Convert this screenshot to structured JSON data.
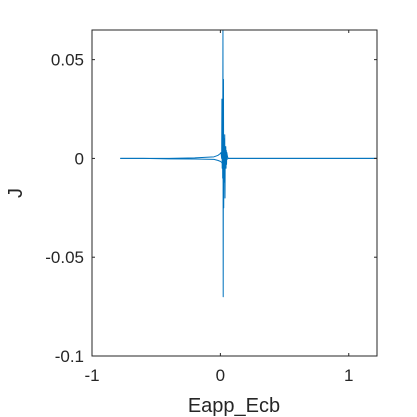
{
  "chart_data": {
    "type": "line",
    "title": "",
    "xlabel": "Eapp_Ecb",
    "ylabel": "J",
    "xlim": [
      -1,
      1.22
    ],
    "ylim": [
      -0.1,
      0.065
    ],
    "xticks": [
      -1,
      0,
      1
    ],
    "xtick_labels": [
      "-1",
      "0",
      "1"
    ],
    "yticks": [
      0.05,
      0,
      -0.05,
      -0.1
    ],
    "ytick_labels": [
      "0.05",
      "0",
      "-0.05",
      "-0.1"
    ],
    "grid": false,
    "legend": "none",
    "series": [
      {
        "color": "#0072bd",
        "x": [
          -0.78,
          -0.6,
          -0.4,
          -0.2,
          -0.05,
          -0.02,
          -0.01,
          0.0,
          0.005,
          0.01,
          0.012,
          0.014,
          0.016,
          0.018,
          0.02,
          0.022,
          0.024,
          0.026,
          0.028,
          0.03,
          0.032,
          0.034,
          0.036,
          0.038,
          0.04,
          0.042,
          0.044,
          0.046,
          0.048,
          0.05,
          0.055,
          0.06,
          0.07,
          0.08,
          0.1,
          0.2,
          0.4,
          0.6,
          0.8,
          1.0,
          1.22
        ],
        "y": [
          0.0,
          0.0,
          0.0,
          0.0003,
          0.0008,
          0.0015,
          0.002,
          0.0025,
          0.003,
          0.0,
          0.03,
          -0.005,
          0.025,
          -0.01,
          0.065,
          -0.07,
          0.04,
          -0.025,
          0.01,
          -0.012,
          0.003,
          0.012,
          -0.02,
          0.005,
          0.0,
          0.006,
          -0.005,
          0.004,
          -0.003,
          0.003,
          0.001,
          0.0,
          0.0,
          0.0,
          0.0,
          0.0,
          0.0,
          0.0,
          0.0,
          0.0,
          0.0
        ]
      },
      {
        "color": "#0072bd",
        "x": [
          -0.78,
          -0.6,
          -0.4,
          -0.2,
          -0.05,
          -0.02,
          0.0,
          0.01,
          0.02,
          0.03,
          0.04,
          0.06,
          0.1,
          0.4,
          0.8,
          1.22
        ],
        "y": [
          0.0,
          0.0,
          -0.0002,
          -0.0003,
          -0.0005,
          -0.001,
          -0.0015,
          -0.002,
          -0.003,
          -0.002,
          -0.001,
          0.0,
          0.0,
          0.0,
          0.0,
          0.0
        ]
      }
    ]
  }
}
